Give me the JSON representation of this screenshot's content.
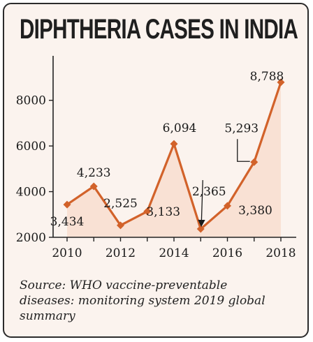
{
  "chart_data": {
    "type": "line",
    "title": "DIPHTHERIA CASES IN INDIA",
    "source": "Source: WHO vaccine-preventable diseases: monitoring system 2019 global summary",
    "x": [
      2010,
      2011,
      2012,
      2013,
      2014,
      2015,
      2016,
      2017,
      2018
    ],
    "values": [
      3434,
      4233,
      2525,
      3133,
      6094,
      2365,
      3380,
      5293,
      8788
    ],
    "value_labels": [
      "3,434",
      "4,233",
      "2,525",
      "3,133",
      "6,094",
      "2,365",
      "3,380",
      "5,293",
      "8,788"
    ],
    "x_ticks": [
      "2010",
      "2012",
      "2014",
      "2016",
      "2018"
    ],
    "y_ticks": [
      "2000",
      "4000",
      "6000",
      "8000"
    ],
    "ylim": [
      2000,
      9000
    ],
    "xlim": [
      2010,
      2018
    ],
    "grid": false,
    "colors": {
      "line": "#d2622a",
      "fill": "#f8dbcb",
      "text": "#1a1a1a"
    }
  }
}
